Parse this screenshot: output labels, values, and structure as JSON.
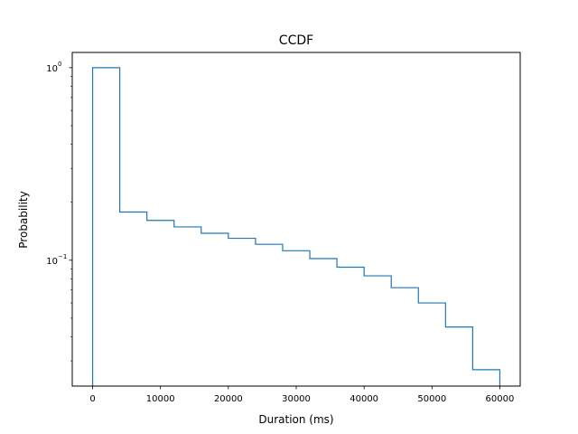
{
  "chart_data": {
    "type": "step",
    "title": "CCDF",
    "xlabel": "Duration (ms)",
    "ylabel": "Probability",
    "yscale": "log",
    "xlim": [
      -3000,
      63000
    ],
    "ylim": [
      0.0222,
      1.2
    ],
    "xticks": [
      0,
      10000,
      20000,
      30000,
      40000,
      50000,
      60000
    ],
    "xtick_labels": [
      "0",
      "10000",
      "20000",
      "30000",
      "40000",
      "50000",
      "60000"
    ],
    "yticks": [
      1,
      0.1
    ],
    "ytick_labels": [
      {
        "base": "10",
        "exp": "0"
      },
      {
        "base": "10",
        "exp": "−1"
      }
    ],
    "grid": false,
    "line_color": "#1f77b4",
    "series": [
      {
        "bin_edges": [
          0,
          4000,
          8000,
          12000,
          16000,
          20000,
          24000,
          28000,
          32000,
          36000,
          40000,
          44000,
          48000,
          52000,
          56000,
          60000
        ],
        "values": [
          1.0,
          0.178,
          0.161,
          0.149,
          0.138,
          0.13,
          0.121,
          0.112,
          0.102,
          0.092,
          0.083,
          0.072,
          0.06,
          0.045,
          0.027
        ]
      }
    ]
  }
}
